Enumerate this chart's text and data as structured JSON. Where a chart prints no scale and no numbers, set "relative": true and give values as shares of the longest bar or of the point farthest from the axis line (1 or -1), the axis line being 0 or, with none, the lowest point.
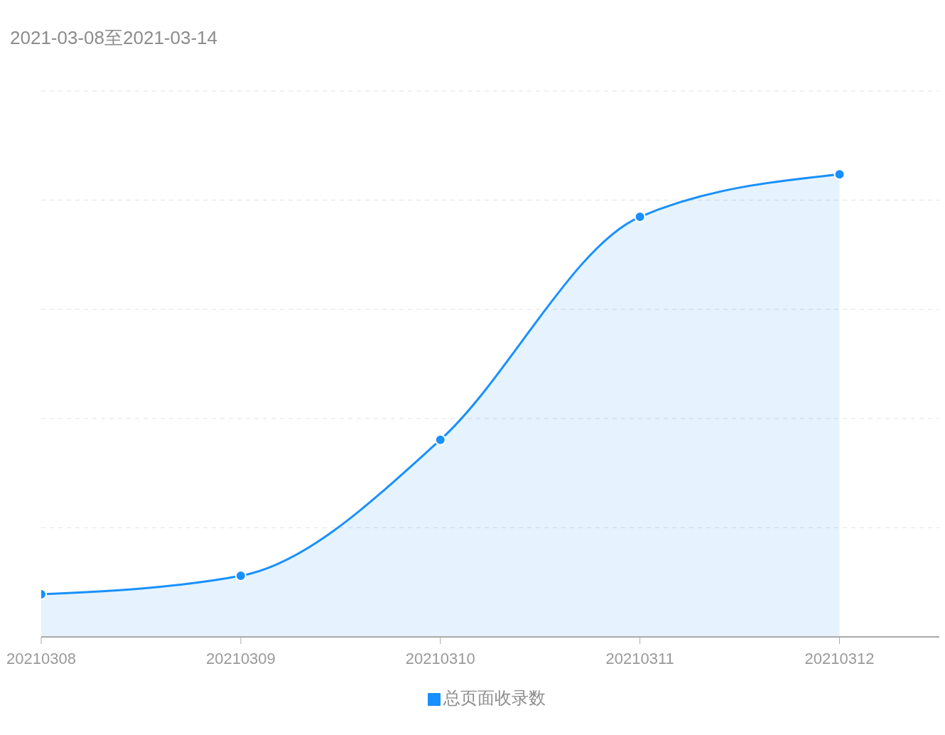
{
  "chart_data": {
    "type": "area",
    "title": "2021-03-08至2021-03-14",
    "categories": [
      "20210308",
      "20210309",
      "20210310",
      "20210311",
      "20210312"
    ],
    "series": [
      {
        "name": "总页面收录数",
        "color": "#1890ff",
        "values": [
          0.092,
          0.132,
          0.426,
          0.908,
          1
        ]
      }
    ],
    "relative": true,
    "grid": "y",
    "legend": "bottom",
    "marker": "circle",
    "line_style": "solid"
  }
}
